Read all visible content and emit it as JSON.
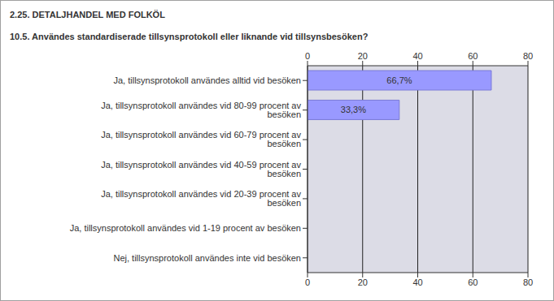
{
  "chart_data": {
    "type": "bar",
    "title": "2.25. DETALJHANDEL MED FOLKÖL",
    "subtitle": "10.5. Användes standardiserade tillsynsprotokoll eller liknande vid tillsynsbesöken?",
    "orientation": "horizontal",
    "categories": [
      "Ja, tillsynsprotokoll användes alltid vid besöken",
      "Ja, tillsynsprotokoll användes vid 80-99 procent av besöken",
      "Ja, tillsynsprotokoll användes vid 60-79 procent av besöken",
      "Ja, tillsynsprotokoll användes vid 40-59 procent av besöken",
      "Ja, tillsynsprotokoll användes vid 20-39 procent av besöken",
      "Ja, tillsynsprotokoll användes vid 1-19 procent av besöken",
      "Nej, tillsynsprotokoll användes inte vid besöken"
    ],
    "values": [
      66.7,
      33.3,
      0,
      0,
      0,
      0,
      0
    ],
    "value_labels": [
      "66,7%",
      "33,3%",
      null,
      null,
      null,
      null,
      null
    ],
    "data_labels": true,
    "color": "#9999ff",
    "xlim": [
      0,
      80
    ],
    "xticks": [
      0,
      20,
      40,
      60,
      80
    ],
    "grid": true
  }
}
